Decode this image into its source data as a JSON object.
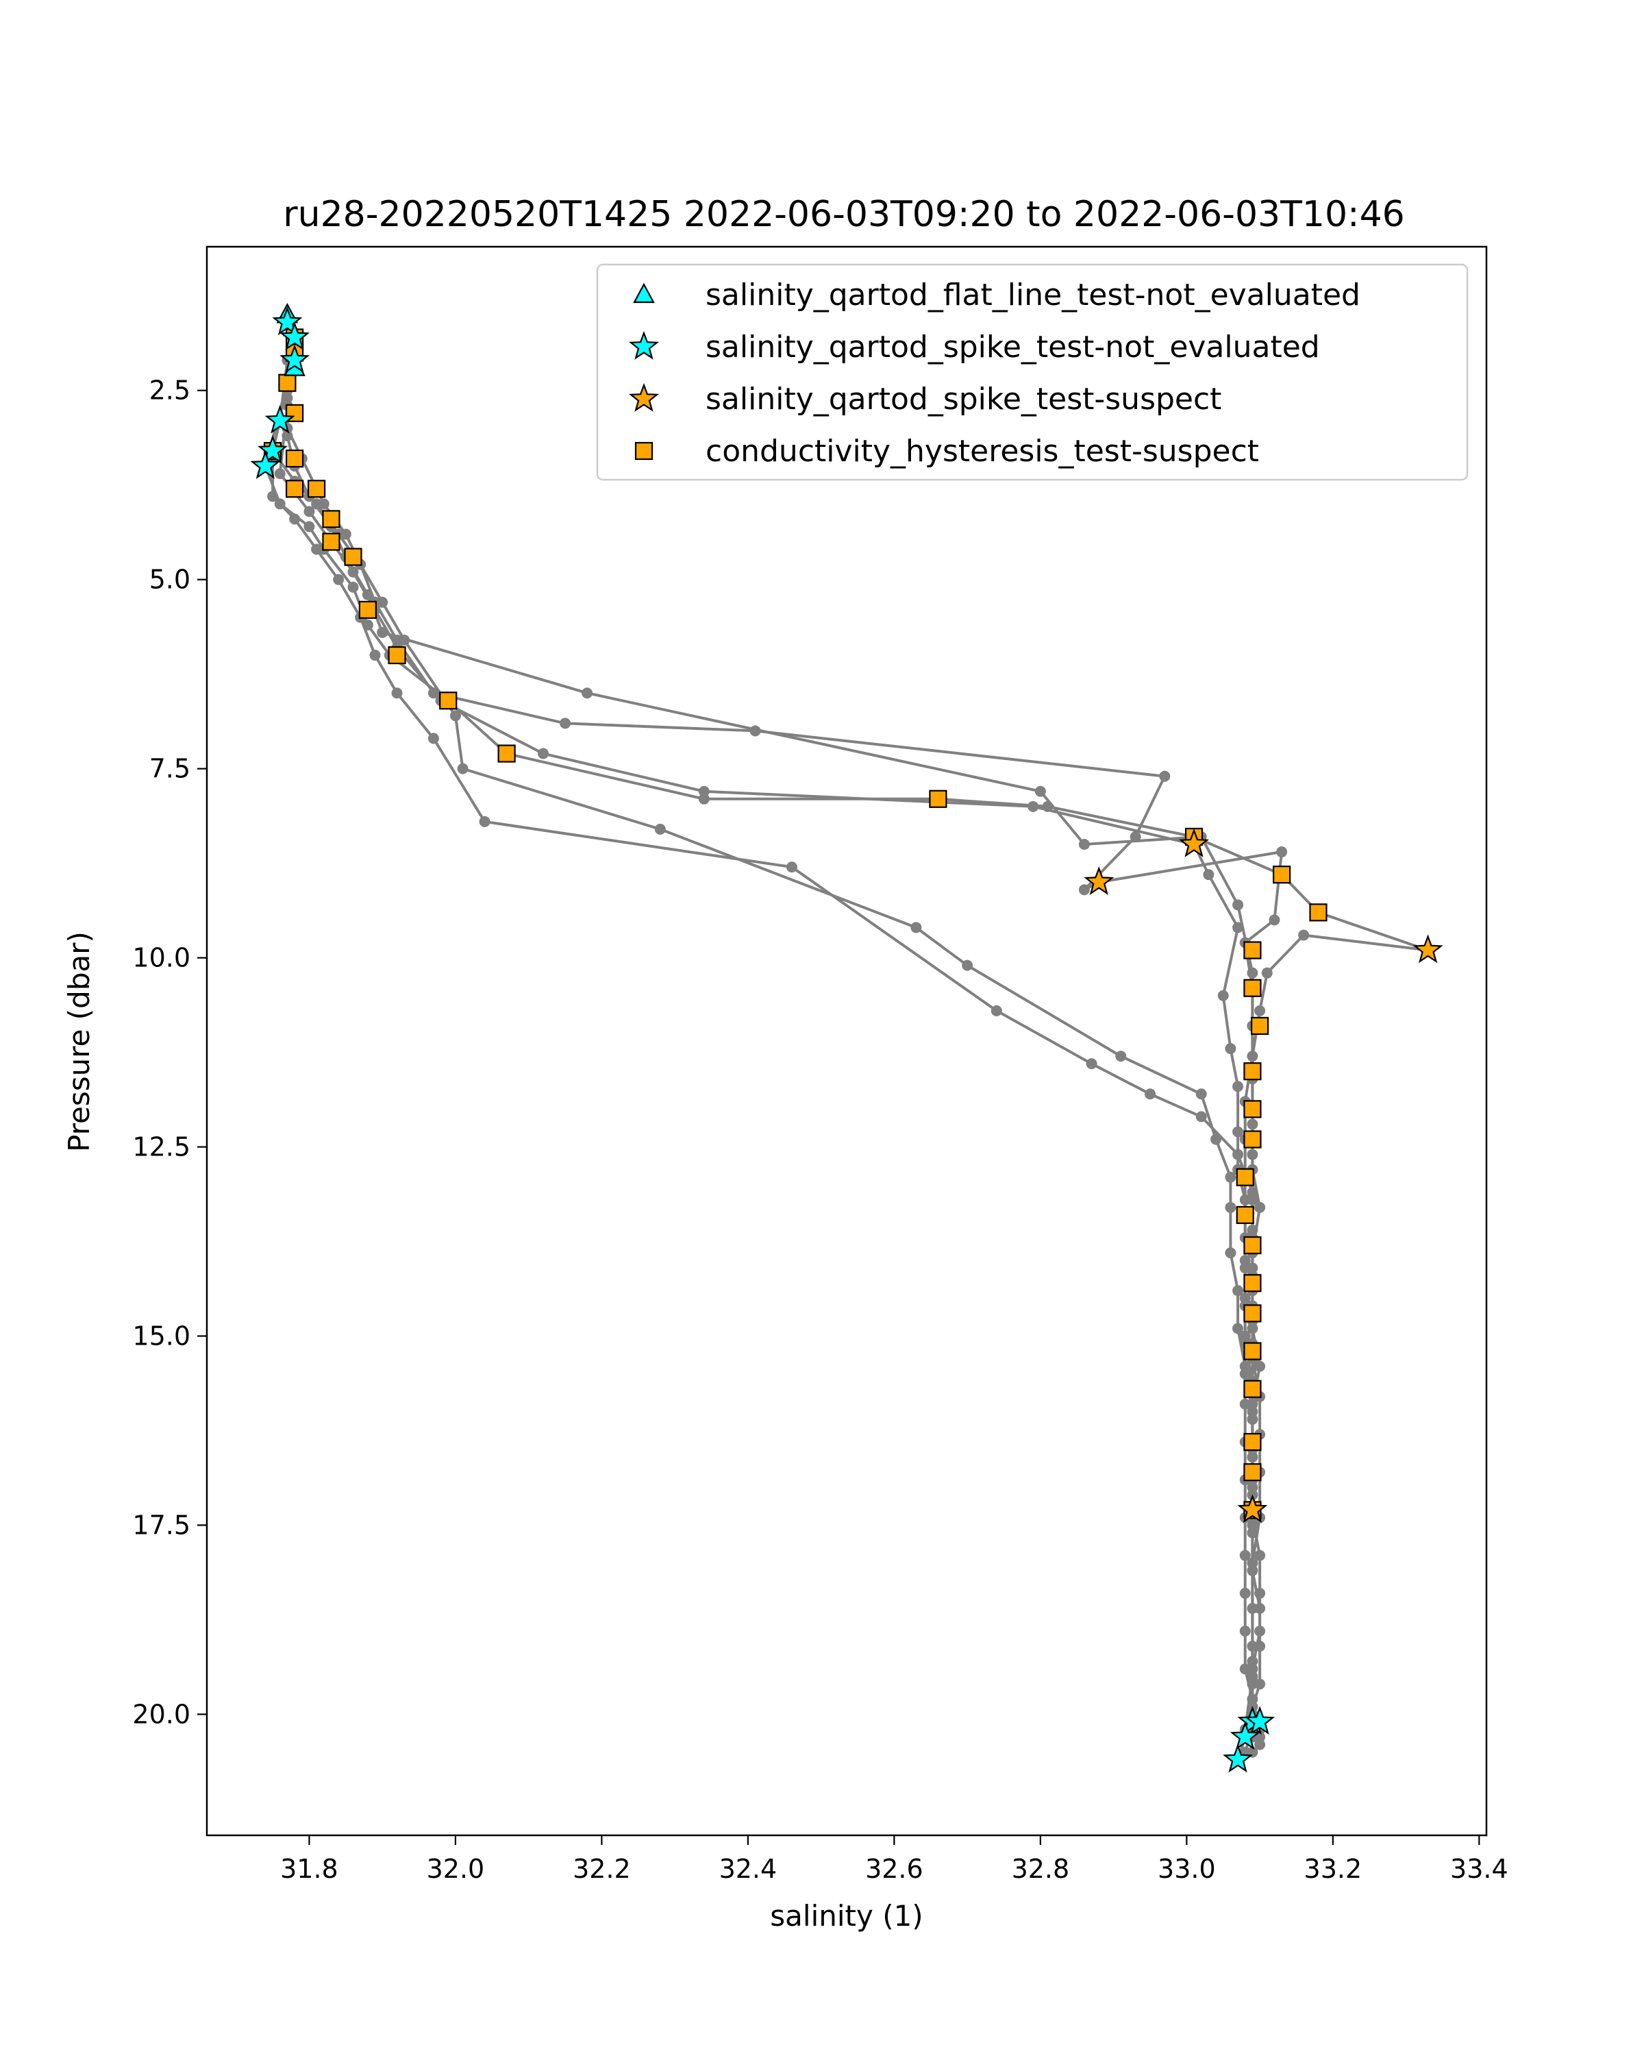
{
  "chart_data": {
    "type": "scatter",
    "title": "ru28-20220520T1425 2022-06-03T09:20 to 2022-06-03T10:46",
    "xlabel": "salinity (1)",
    "ylabel": "Pressure (dbar)",
    "xlim": [
      31.66,
      33.41
    ],
    "ylim": [
      21.6,
      0.6
    ],
    "y_inverted": true,
    "x_ticks": [
      31.8,
      32.0,
      32.2,
      32.4,
      32.6,
      32.8,
      33.0,
      33.2,
      33.4
    ],
    "x_tick_labels": [
      "31.8",
      "32.0",
      "32.2",
      "32.4",
      "32.6",
      "32.8",
      "33.0",
      "33.2",
      "33.4"
    ],
    "y_ticks": [
      2.5,
      5.0,
      7.5,
      10.0,
      12.5,
      15.0,
      17.5,
      20.0
    ],
    "y_tick_labels": [
      "2.5",
      "5.0",
      "7.5",
      "10.0",
      "12.5",
      "15.0",
      "17.5",
      "20.0"
    ],
    "grid": false,
    "legend_position": "top-right",
    "colors": {
      "profile_line": "#808080",
      "cyan_marker": "#00ffff",
      "orange_marker": "#ffa500",
      "marker_edge": "#000000"
    },
    "profiles": [
      {
        "x": [
          31.77,
          31.78,
          31.78,
          31.77,
          31.77,
          31.78,
          31.8,
          31.83,
          31.85,
          31.88,
          31.9,
          32.18,
          32.8,
          32.86,
          33.02,
          33.07,
          33.09,
          33.09,
          33.09,
          33.09,
          33.09,
          33.1,
          33.09,
          33.09,
          33.09,
          33.1,
          33.09,
          33.09,
          33.09,
          33.09,
          33.1,
          33.1,
          33.1,
          33.09,
          33.09,
          33.08,
          33.07
        ],
        "y": [
          1.6,
          1.9,
          2.2,
          2.6,
          3.1,
          3.5,
          3.9,
          4.3,
          4.7,
          5.2,
          5.7,
          6.5,
          7.8,
          8.5,
          8.4,
          9.3,
          10.2,
          10.9,
          11.6,
          12.2,
          12.8,
          13.3,
          13.9,
          14.4,
          14.9,
          15.4,
          15.9,
          16.4,
          16.9,
          17.4,
          17.9,
          18.4,
          18.9,
          19.4,
          19.9,
          20.3,
          20.6
        ]
      },
      {
        "x": [
          31.78,
          31.77,
          31.76,
          31.75,
          31.78,
          31.81,
          31.84,
          31.87,
          31.89,
          31.92,
          31.97,
          32.15,
          32.41,
          32.97,
          32.93,
          32.86,
          32.88,
          33.13,
          33.12,
          33.08,
          33.09,
          33.09,
          33.09,
          33.09,
          33.09,
          33.09,
          33.09,
          33.09,
          33.09,
          33.09,
          33.1,
          33.1,
          33.1,
          33.1,
          33.09,
          33.09,
          33.08
        ],
        "y": [
          1.8,
          2.1,
          2.9,
          3.3,
          3.7,
          4.0,
          4.4,
          4.8,
          5.3,
          5.8,
          6.5,
          6.9,
          7.0,
          7.6,
          8.4,
          9.1,
          9.0,
          8.6,
          9.5,
          9.8,
          10.4,
          10.9,
          11.5,
          12.0,
          12.6,
          13.2,
          13.7,
          14.2,
          14.8,
          15.3,
          15.8,
          16.3,
          16.8,
          17.4,
          18.0,
          19.5,
          20.2
        ]
      },
      {
        "x": [
          31.78,
          31.77,
          31.74,
          31.76,
          31.8,
          31.82,
          31.86,
          31.88,
          31.91,
          31.99,
          32.07,
          32.34,
          32.66,
          32.81,
          33.01,
          33.13,
          33.18,
          33.33,
          33.16,
          33.11,
          33.1,
          33.09,
          33.08,
          33.08,
          33.08,
          33.08,
          33.08,
          33.08,
          33.08,
          33.08,
          33.09,
          33.09,
          33.09,
          33.09,
          33.09,
          33.09,
          33.09
        ],
        "y": [
          2.0,
          2.4,
          3.5,
          4.0,
          4.3,
          4.6,
          5.1,
          5.6,
          6.0,
          6.6,
          7.3,
          7.9,
          7.9,
          8.0,
          8.4,
          8.9,
          9.4,
          9.9,
          9.7,
          10.2,
          10.7,
          11.3,
          11.9,
          12.4,
          12.9,
          13.4,
          14.0,
          14.5,
          15.0,
          15.5,
          16.0,
          16.5,
          17.0,
          17.5,
          18.0,
          19.3,
          20.1
        ]
      },
      {
        "x": [
          31.78,
          31.77,
          31.76,
          31.8,
          31.83,
          31.86,
          31.89,
          31.92,
          31.98,
          32.12,
          32.34,
          32.79,
          33.01,
          33.03,
          33.07,
          33.05,
          33.06,
          33.07,
          33.07,
          33.07,
          33.08,
          33.08,
          33.08,
          33.08,
          33.08,
          33.09,
          33.09,
          33.09,
          33.09,
          33.09,
          33.09,
          33.1,
          33.1,
          33.1,
          33.09,
          33.09,
          33.08
        ],
        "y": [
          2.2,
          2.7,
          3.6,
          4.1,
          4.5,
          4.9,
          5.4,
          5.9,
          6.6,
          7.3,
          7.8,
          8.0,
          8.5,
          8.9,
          9.6,
          10.5,
          11.2,
          11.7,
          12.3,
          12.8,
          13.2,
          13.7,
          14.1,
          14.6,
          15.1,
          15.6,
          16.1,
          16.6,
          17.1,
          17.6,
          18.1,
          18.6,
          19.1,
          19.6,
          19.9,
          20.2,
          20.5
        ]
      },
      {
        "x": [
          31.77,
          31.77,
          31.79,
          31.82,
          31.85,
          31.87,
          31.9,
          31.93,
          32.0,
          32.01,
          32.28,
          32.63,
          32.7,
          32.91,
          33.02,
          33.04,
          33.06,
          33.06,
          33.06,
          33.07,
          33.07,
          33.08,
          33.08,
          33.08,
          33.08,
          33.08,
          33.08,
          33.08,
          33.08,
          33.08,
          33.09,
          33.09,
          33.09,
          33.09,
          33.09,
          33.1,
          33.09
        ],
        "y": [
          2.5,
          3.0,
          3.4,
          4.0,
          4.4,
          4.8,
          5.3,
          5.8,
          6.8,
          7.5,
          8.3,
          9.6,
          10.1,
          11.3,
          11.8,
          12.4,
          12.9,
          13.3,
          13.9,
          14.4,
          14.9,
          15.4,
          15.9,
          16.4,
          16.9,
          17.4,
          17.9,
          18.4,
          18.9,
          19.4,
          19.8,
          20.0,
          20.0,
          20.1,
          20.1,
          20.2,
          20.3
        ]
      },
      {
        "x": [
          31.75,
          31.75,
          31.78,
          31.81,
          31.84,
          31.87,
          31.89,
          31.92,
          31.97,
          32.04,
          32.46,
          32.74,
          32.87,
          32.95,
          33.02,
          33.07,
          33.09,
          33.09,
          33.09,
          33.09,
          33.09,
          33.09,
          33.09,
          33.09,
          33.09,
          33.09,
          33.09,
          33.09,
          33.09,
          33.09,
          33.09,
          33.1,
          33.1,
          33.1,
          33.09,
          33.07
        ],
        "y": [
          3.4,
          3.9,
          4.2,
          4.6,
          5.0,
          5.5,
          6.0,
          6.5,
          7.1,
          8.2,
          8.8,
          10.7,
          11.4,
          11.8,
          12.1,
          12.6,
          13.1,
          13.6,
          14.1,
          14.6,
          15.1,
          15.6,
          16.1,
          16.6,
          17.1,
          17.6,
          18.1,
          18.6,
          19.1,
          19.6,
          20.0,
          20.1,
          20.3,
          20.4,
          20.5,
          20.6
        ]
      }
    ],
    "series": [
      {
        "name": "salinity_qartod_flat_line_test-not_evaluated",
        "marker": "triangle",
        "color": "#00ffff",
        "points": [
          [
            31.77,
            1.5
          ],
          [
            31.78,
            2.2
          ]
        ]
      },
      {
        "name": "salinity_qartod_spike_test-not_evaluated",
        "marker": "star",
        "color": "#00ffff",
        "points": [
          [
            31.77,
            1.6
          ],
          [
            31.78,
            1.8
          ],
          [
            31.78,
            2.1
          ],
          [
            31.76,
            2.9
          ],
          [
            31.75,
            3.3
          ],
          [
            31.74,
            3.5
          ],
          [
            33.09,
            20.1
          ],
          [
            33.1,
            20.1
          ],
          [
            33.08,
            20.3
          ],
          [
            33.07,
            20.6
          ]
        ]
      },
      {
        "name": "salinity_qartod_spike_test-suspect",
        "marker": "star",
        "color": "#ffa500",
        "points": [
          [
            32.88,
            9.0
          ],
          [
            33.01,
            8.5
          ],
          [
            33.33,
            9.9
          ],
          [
            33.09,
            17.3
          ]
        ]
      },
      {
        "name": "conductivity_hysteresis_test-suspect",
        "marker": "square",
        "color": "#ffa500",
        "points": [
          [
            31.78,
            1.8
          ],
          [
            31.78,
            2.0
          ],
          [
            31.77,
            2.4
          ],
          [
            31.78,
            2.8
          ],
          [
            31.75,
            3.3
          ],
          [
            31.78,
            3.4
          ],
          [
            31.78,
            3.8
          ],
          [
            31.81,
            3.8
          ],
          [
            31.83,
            4.2
          ],
          [
            31.83,
            4.5
          ],
          [
            31.86,
            4.7
          ],
          [
            31.88,
            5.4
          ],
          [
            31.92,
            6.0
          ],
          [
            31.99,
            6.6
          ],
          [
            32.07,
            7.3
          ],
          [
            32.66,
            7.9
          ],
          [
            33.01,
            8.4
          ],
          [
            33.13,
            8.9
          ],
          [
            33.18,
            9.4
          ],
          [
            33.09,
            9.9
          ],
          [
            33.09,
            10.4
          ],
          [
            33.1,
            10.9
          ],
          [
            33.09,
            11.5
          ],
          [
            33.09,
            12.0
          ],
          [
            33.09,
            12.4
          ],
          [
            33.08,
            12.9
          ],
          [
            33.08,
            13.4
          ],
          [
            33.09,
            13.8
          ],
          [
            33.09,
            14.3
          ],
          [
            33.09,
            14.7
          ],
          [
            33.09,
            15.2
          ],
          [
            33.09,
            15.7
          ],
          [
            33.09,
            16.4
          ],
          [
            33.09,
            16.8
          ],
          [
            33.09,
            17.3
          ]
        ]
      }
    ]
  }
}
